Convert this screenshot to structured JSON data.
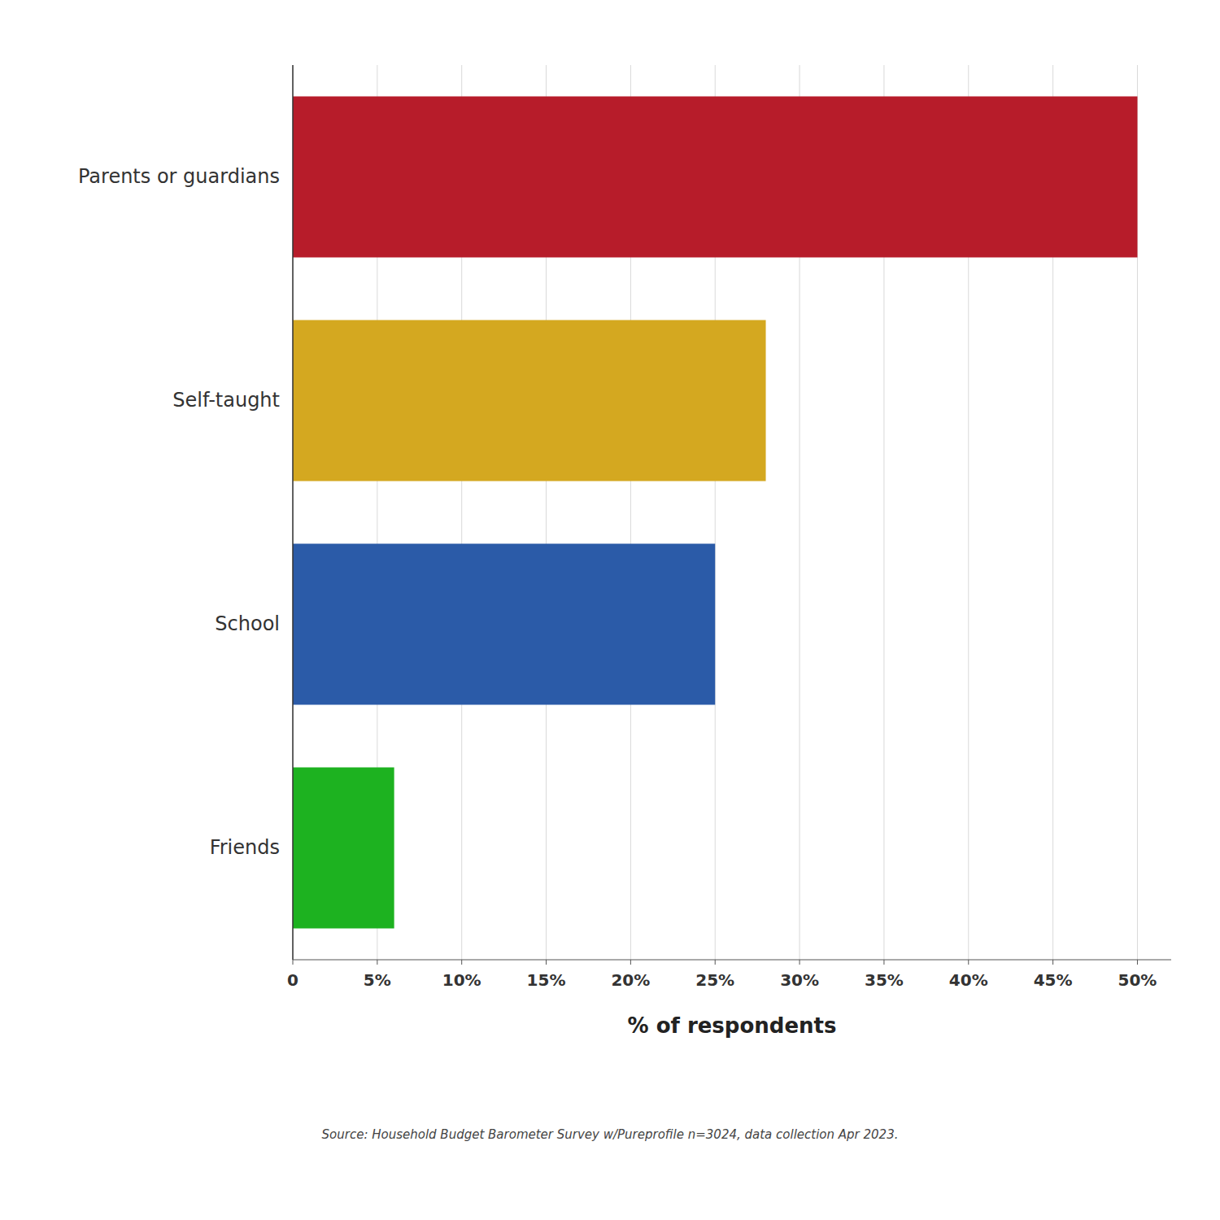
{
  "chart_data": {
    "type": "bar",
    "orientation": "horizontal",
    "categories": [
      "Parents or guardians",
      "Self-taught",
      "School",
      "Friends"
    ],
    "values": [
      50,
      28,
      25,
      6
    ],
    "colors": [
      "#B71C2A",
      "#D4A820",
      "#2B5BA8",
      "#1DB220"
    ],
    "x_label": "% of respondents",
    "xlim": [
      0,
      52
    ],
    "xticks": [
      0,
      {
        "value": 5,
        "label": "5%"
      },
      {
        "value": 10,
        "label": "10%"
      },
      {
        "value": 15,
        "label": "15%"
      },
      {
        "value": 20,
        "label": "20%"
      },
      {
        "value": 25,
        "label": "25%"
      },
      {
        "value": 30,
        "label": "30%"
      },
      {
        "value": 35,
        "label": "35%"
      },
      {
        "value": 40,
        "label": "40%"
      },
      {
        "value": 45,
        "label": "45%"
      },
      {
        "value": 50,
        "label": "50%"
      }
    ],
    "grid": true,
    "annotations": [
      "Source: Household Budget Barometer Survey w/Pureprofile n=3024, data collection Apr 2023."
    ]
  }
}
